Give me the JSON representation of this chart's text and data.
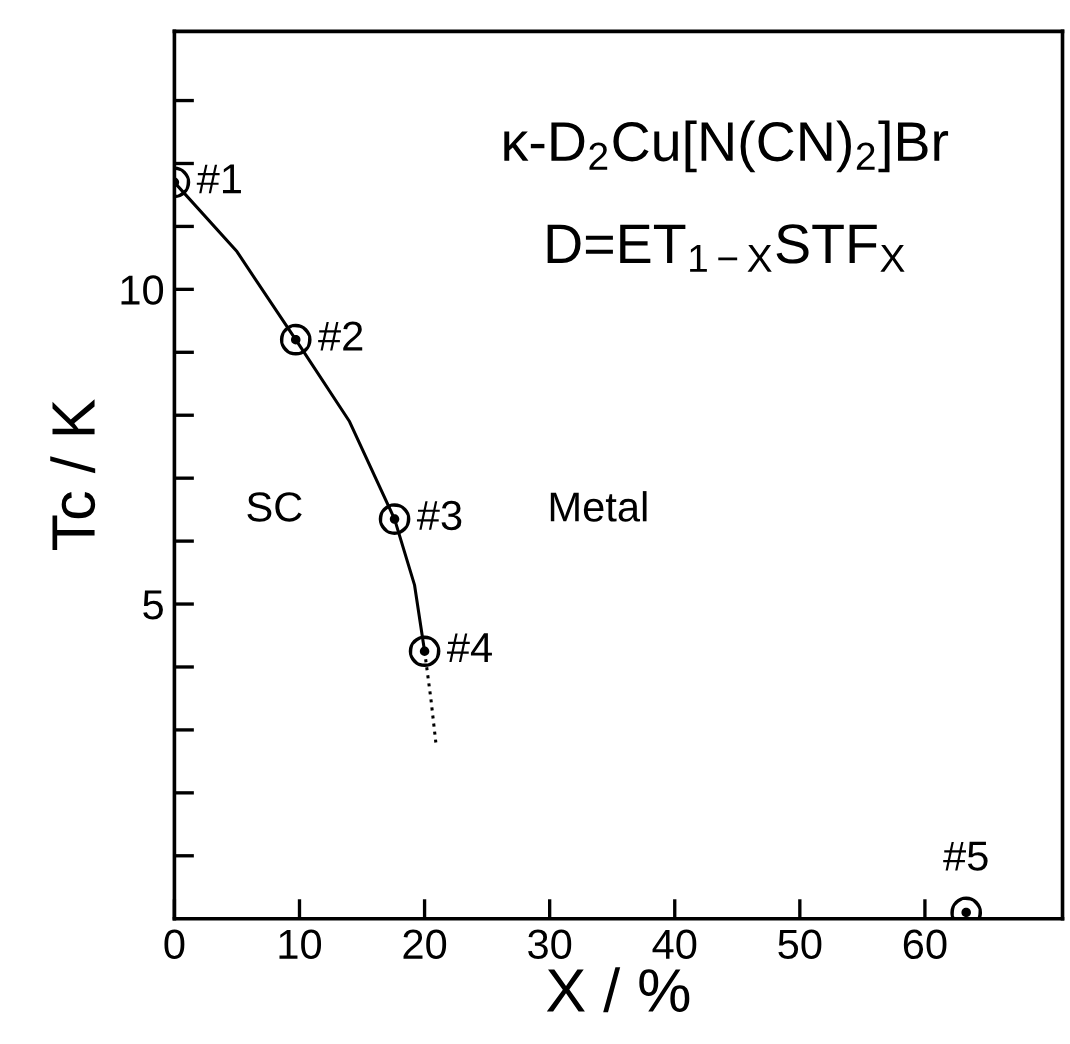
{
  "chart_data": {
    "type": "scatter",
    "xlabel": "X / %",
    "ylabel": "Tc / K",
    "xlim": [
      0,
      71
    ],
    "ylim": [
      0,
      14.1
    ],
    "xticks": [
      0,
      10,
      20,
      30,
      40,
      50,
      60
    ],
    "yticks": [
      {
        "value": 1,
        "label": null
      },
      {
        "value": 2,
        "label": null
      },
      {
        "value": 3,
        "label": null
      },
      {
        "value": 4,
        "label": null
      },
      5,
      {
        "value": 6,
        "label": null
      },
      {
        "value": 7,
        "label": null
      },
      {
        "value": 8,
        "label": null
      },
      {
        "value": 9,
        "label": null
      },
      10,
      {
        "value": 11,
        "label": null
      },
      {
        "value": 12,
        "label": null
      },
      {
        "value": 13,
        "label": null
      }
    ],
    "grid": false,
    "legend": false,
    "series": [
      {
        "marker": "circle",
        "color": "#000000",
        "x": [
          0,
          9.7,
          17.6,
          20.0,
          63.3
        ],
        "values": [
          11.7,
          9.2,
          6.35,
          4.25,
          0.1
        ]
      },
      {
        "type": "line",
        "marker": "none",
        "line_style": "solid",
        "color": "#000000",
        "x": [
          0,
          5,
          9.7,
          14,
          17.6,
          19.2,
          20.0
        ],
        "values": [
          11.7,
          10.6,
          9.2,
          7.9,
          6.35,
          5.3,
          4.25
        ]
      },
      {
        "type": "line",
        "marker": "none",
        "line_style": "dotted",
        "color": "#000000",
        "x": [
          20.0,
          20.5,
          20.9
        ],
        "values": [
          4.25,
          3.5,
          2.8
        ]
      }
    ],
    "annotations": [
      "κ-D$_{2}$Cu[N(CN)$_{2}$]Br",
      "D=ET$_{1−X}$STF$_{X}$",
      {
        "text": "#1",
        "x": 0,
        "y": 11.7
      },
      {
        "text": "#2",
        "x": 9.7,
        "y": 9.2
      },
      {
        "text": "#3",
        "x": 17.6,
        "y": 6.35
      },
      {
        "text": "#4",
        "x": 20.0,
        "y": 4.25
      },
      {
        "text": "#5",
        "x": 63.3,
        "y": 0.1
      },
      "SC",
      "Metal"
    ]
  }
}
